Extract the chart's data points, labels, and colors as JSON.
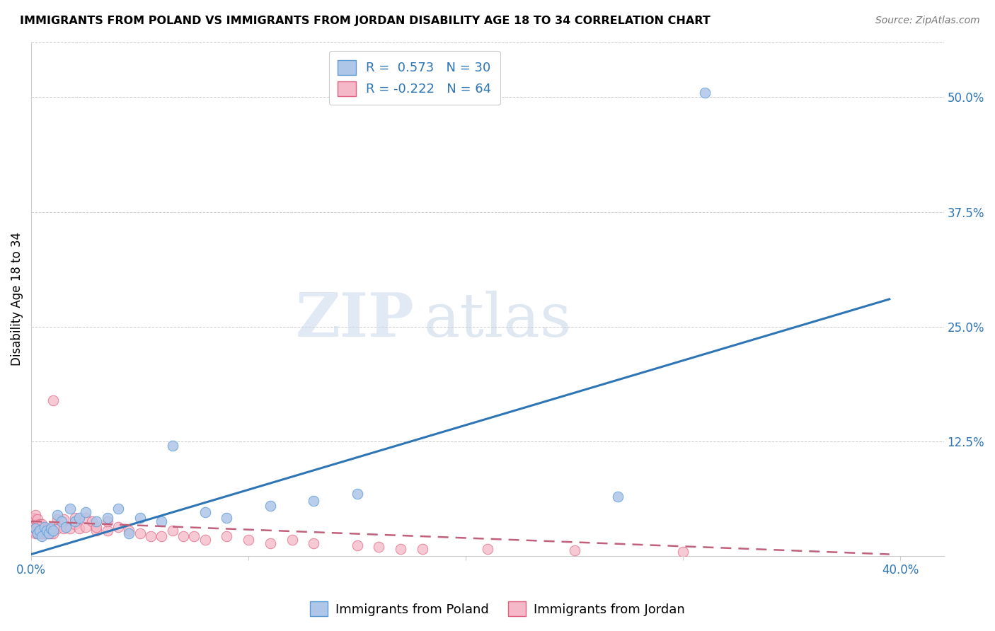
{
  "title": "IMMIGRANTS FROM POLAND VS IMMIGRANTS FROM JORDAN DISABILITY AGE 18 TO 34 CORRELATION CHART",
  "source": "Source: ZipAtlas.com",
  "ylabel": "Disability Age 18 to 34",
  "xlim": [
    0.0,
    0.42
  ],
  "ylim": [
    0.0,
    0.56
  ],
  "xticks": [
    0.0,
    0.1,
    0.2,
    0.3,
    0.4
  ],
  "yticks": [
    0.0,
    0.125,
    0.25,
    0.375,
    0.5
  ],
  "poland_R": 0.573,
  "poland_N": 30,
  "jordan_R": -0.222,
  "jordan_N": 64,
  "poland_color": "#aec6e8",
  "poland_edge": "#5b9bd5",
  "jordan_color": "#f4b8c8",
  "jordan_edge": "#e06080",
  "poland_line_color": "#2e75b6",
  "jordan_line_color": "#c0607a",
  "watermark_text": "ZIPatlas",
  "poland_points": [
    [
      0.002,
      0.03
    ],
    [
      0.003,
      0.025
    ],
    [
      0.004,
      0.028
    ],
    [
      0.005,
      0.022
    ],
    [
      0.006,
      0.032
    ],
    [
      0.007,
      0.028
    ],
    [
      0.008,
      0.025
    ],
    [
      0.009,
      0.03
    ],
    [
      0.01,
      0.028
    ],
    [
      0.012,
      0.045
    ],
    [
      0.014,
      0.038
    ],
    [
      0.016,
      0.032
    ],
    [
      0.018,
      0.052
    ],
    [
      0.02,
      0.038
    ],
    [
      0.022,
      0.042
    ],
    [
      0.025,
      0.048
    ],
    [
      0.03,
      0.038
    ],
    [
      0.035,
      0.042
    ],
    [
      0.04,
      0.052
    ],
    [
      0.045,
      0.025
    ],
    [
      0.05,
      0.042
    ],
    [
      0.06,
      0.038
    ],
    [
      0.065,
      0.12
    ],
    [
      0.08,
      0.048
    ],
    [
      0.09,
      0.042
    ],
    [
      0.11,
      0.055
    ],
    [
      0.13,
      0.06
    ],
    [
      0.15,
      0.068
    ],
    [
      0.27,
      0.065
    ],
    [
      0.31,
      0.505
    ]
  ],
  "jordan_points": [
    [
      0.001,
      0.028
    ],
    [
      0.001,
      0.032
    ],
    [
      0.001,
      0.038
    ],
    [
      0.001,
      0.042
    ],
    [
      0.002,
      0.025
    ],
    [
      0.002,
      0.03
    ],
    [
      0.002,
      0.035
    ],
    [
      0.002,
      0.04
    ],
    [
      0.002,
      0.045
    ],
    [
      0.003,
      0.025
    ],
    [
      0.003,
      0.03
    ],
    [
      0.003,
      0.035
    ],
    [
      0.003,
      0.04
    ],
    [
      0.004,
      0.025
    ],
    [
      0.004,
      0.03
    ],
    [
      0.004,
      0.035
    ],
    [
      0.005,
      0.025
    ],
    [
      0.005,
      0.03
    ],
    [
      0.005,
      0.035
    ],
    [
      0.006,
      0.025
    ],
    [
      0.006,
      0.03
    ],
    [
      0.007,
      0.025
    ],
    [
      0.007,
      0.03
    ],
    [
      0.008,
      0.025
    ],
    [
      0.008,
      0.03
    ],
    [
      0.009,
      0.025
    ],
    [
      0.01,
      0.025
    ],
    [
      0.01,
      0.17
    ],
    [
      0.012,
      0.03
    ],
    [
      0.012,
      0.04
    ],
    [
      0.015,
      0.03
    ],
    [
      0.015,
      0.04
    ],
    [
      0.018,
      0.03
    ],
    [
      0.02,
      0.035
    ],
    [
      0.02,
      0.042
    ],
    [
      0.022,
      0.03
    ],
    [
      0.025,
      0.032
    ],
    [
      0.025,
      0.042
    ],
    [
      0.028,
      0.038
    ],
    [
      0.03,
      0.028
    ],
    [
      0.03,
      0.032
    ],
    [
      0.035,
      0.028
    ],
    [
      0.035,
      0.038
    ],
    [
      0.04,
      0.032
    ],
    [
      0.045,
      0.028
    ],
    [
      0.05,
      0.025
    ],
    [
      0.055,
      0.022
    ],
    [
      0.06,
      0.022
    ],
    [
      0.065,
      0.028
    ],
    [
      0.07,
      0.022
    ],
    [
      0.075,
      0.022
    ],
    [
      0.08,
      0.018
    ],
    [
      0.09,
      0.022
    ],
    [
      0.1,
      0.018
    ],
    [
      0.11,
      0.014
    ],
    [
      0.12,
      0.018
    ],
    [
      0.13,
      0.014
    ],
    [
      0.15,
      0.012
    ],
    [
      0.16,
      0.01
    ],
    [
      0.17,
      0.008
    ],
    [
      0.18,
      0.008
    ],
    [
      0.21,
      0.008
    ],
    [
      0.25,
      0.006
    ],
    [
      0.3,
      0.005
    ]
  ],
  "poland_trend_x": [
    0.0,
    0.395
  ],
  "poland_trend_y": [
    0.002,
    0.28
  ],
  "jordan_trend_x": [
    0.0,
    0.395
  ],
  "jordan_trend_y": [
    0.038,
    0.002
  ]
}
